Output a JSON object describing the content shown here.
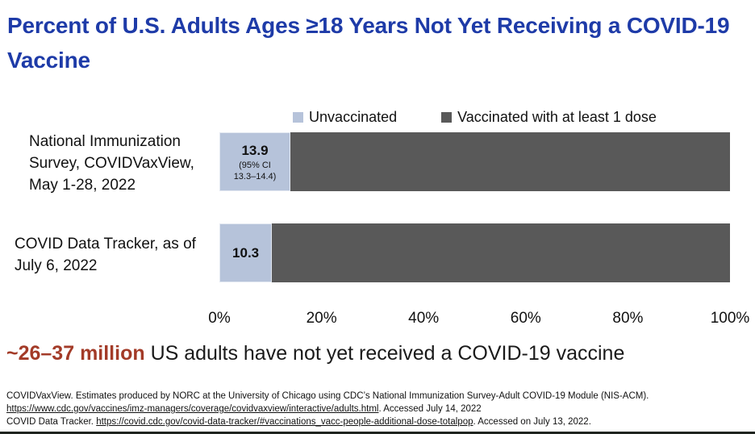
{
  "title": "Percent of U.S. Adults Ages ≥18 Years Not Yet Receiving a COVID-19 Vaccine",
  "colors": {
    "title_blue": "#1e3ba8",
    "unvaccinated": "#b6c3da",
    "vaccinated": "#595959",
    "highlight_red": "#a33b28"
  },
  "chart_data": {
    "type": "bar",
    "orientation": "horizontal",
    "stacked": true,
    "categories": [
      "National Immunization Survey, COVIDVaxView, May 1-28, 2022",
      "COVID Data Tracker, as of July 6, 2022"
    ],
    "series": [
      {
        "name": "Unvaccinated",
        "color": "#b6c3da",
        "values": [
          13.9,
          10.3
        ]
      },
      {
        "name": "Vaccinated with at least 1 dose",
        "color": "#595959",
        "values": [
          86.1,
          89.7
        ]
      }
    ],
    "annotations": [
      {
        "bar": 0,
        "value_label": "13.9",
        "ci": "95% CI 13.3–14.4"
      },
      {
        "bar": 1,
        "value_label": "10.3"
      }
    ],
    "xlim": [
      0,
      100
    ],
    "x_ticks": [
      "0%",
      "20%",
      "40%",
      "60%",
      "80%",
      "100%"
    ],
    "legend_position": "top",
    "grid": false
  },
  "rows": [
    {
      "label_lines": [
        "National Immunization",
        "Survey, COVIDVaxView,",
        "May 1-28, 2022"
      ],
      "value_label": "13.9",
      "ci_line1": "(95% CI",
      "ci_line2": "13.3–14.4)"
    },
    {
      "label_lines": [
        "COVID Data Tracker, as of",
        "July 6, 2022"
      ],
      "value_label": "10.3"
    }
  ],
  "headline": {
    "highlight": "~26–37 million",
    "rest": " US adults have not yet received a COVID-19 vaccine"
  },
  "footnotes": {
    "line1": "COVIDVaxView. Estimates produced by NORC at the University of Chicago using CDC’s National Immunization Survey-Adult COVID-19 Module (NIS-ACM).",
    "line2_link": "https://www.cdc.gov/vaccines/imz-managers/coverage/covidvaxview/interactive/adults.html",
    "line2_rest": ". Accessed July 14, 2022",
    "line3_prefix": "COVID Data Tracker. ",
    "line3_link": "https://covid.cdc.gov/covid-data-tracker/#vaccinations_vacc-people-additional-dose-totalpop",
    "line3_rest": ". Accessed on July 13, 2022."
  }
}
